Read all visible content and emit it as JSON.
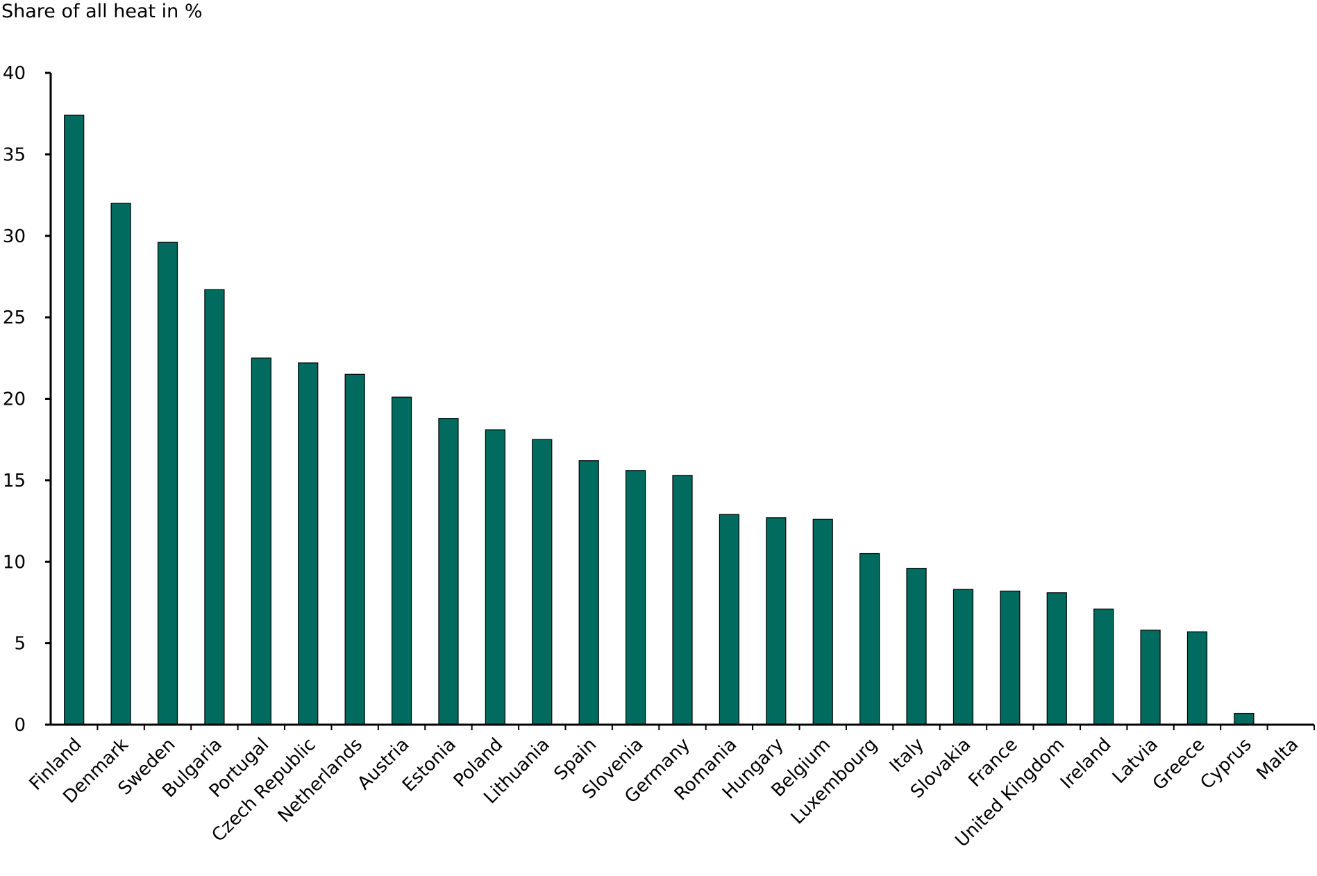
{
  "chart_data": {
    "type": "bar",
    "ylabel": "Share of all heat in %",
    "ylim": [
      0,
      40
    ],
    "yticks": [
      0,
      5,
      10,
      15,
      20,
      25,
      30,
      35,
      40
    ],
    "grid": false,
    "bar_color": "#006B5E",
    "categories": [
      "Finland",
      "Denmark",
      "Sweden",
      "Bulgaria",
      "Portugal",
      "Czech Republic",
      "Netherlands",
      "Austria",
      "Estonia",
      "Poland",
      "Lithuania",
      "Spain",
      "Slovenia",
      "Germany",
      "Romania",
      "Hungary",
      "Belgium",
      "Luxembourg",
      "Italy",
      "Slovakia",
      "France",
      "United Kingdom",
      "Ireland",
      "Latvia",
      "Greece",
      "Cyprus",
      "Malta"
    ],
    "values": [
      37.4,
      32.0,
      29.6,
      26.7,
      22.5,
      22.2,
      21.5,
      20.1,
      18.8,
      18.1,
      17.5,
      16.2,
      15.6,
      15.3,
      12.9,
      12.7,
      12.6,
      10.5,
      9.6,
      8.3,
      8.2,
      8.1,
      7.1,
      5.8,
      5.7,
      0.7,
      0.0
    ]
  }
}
